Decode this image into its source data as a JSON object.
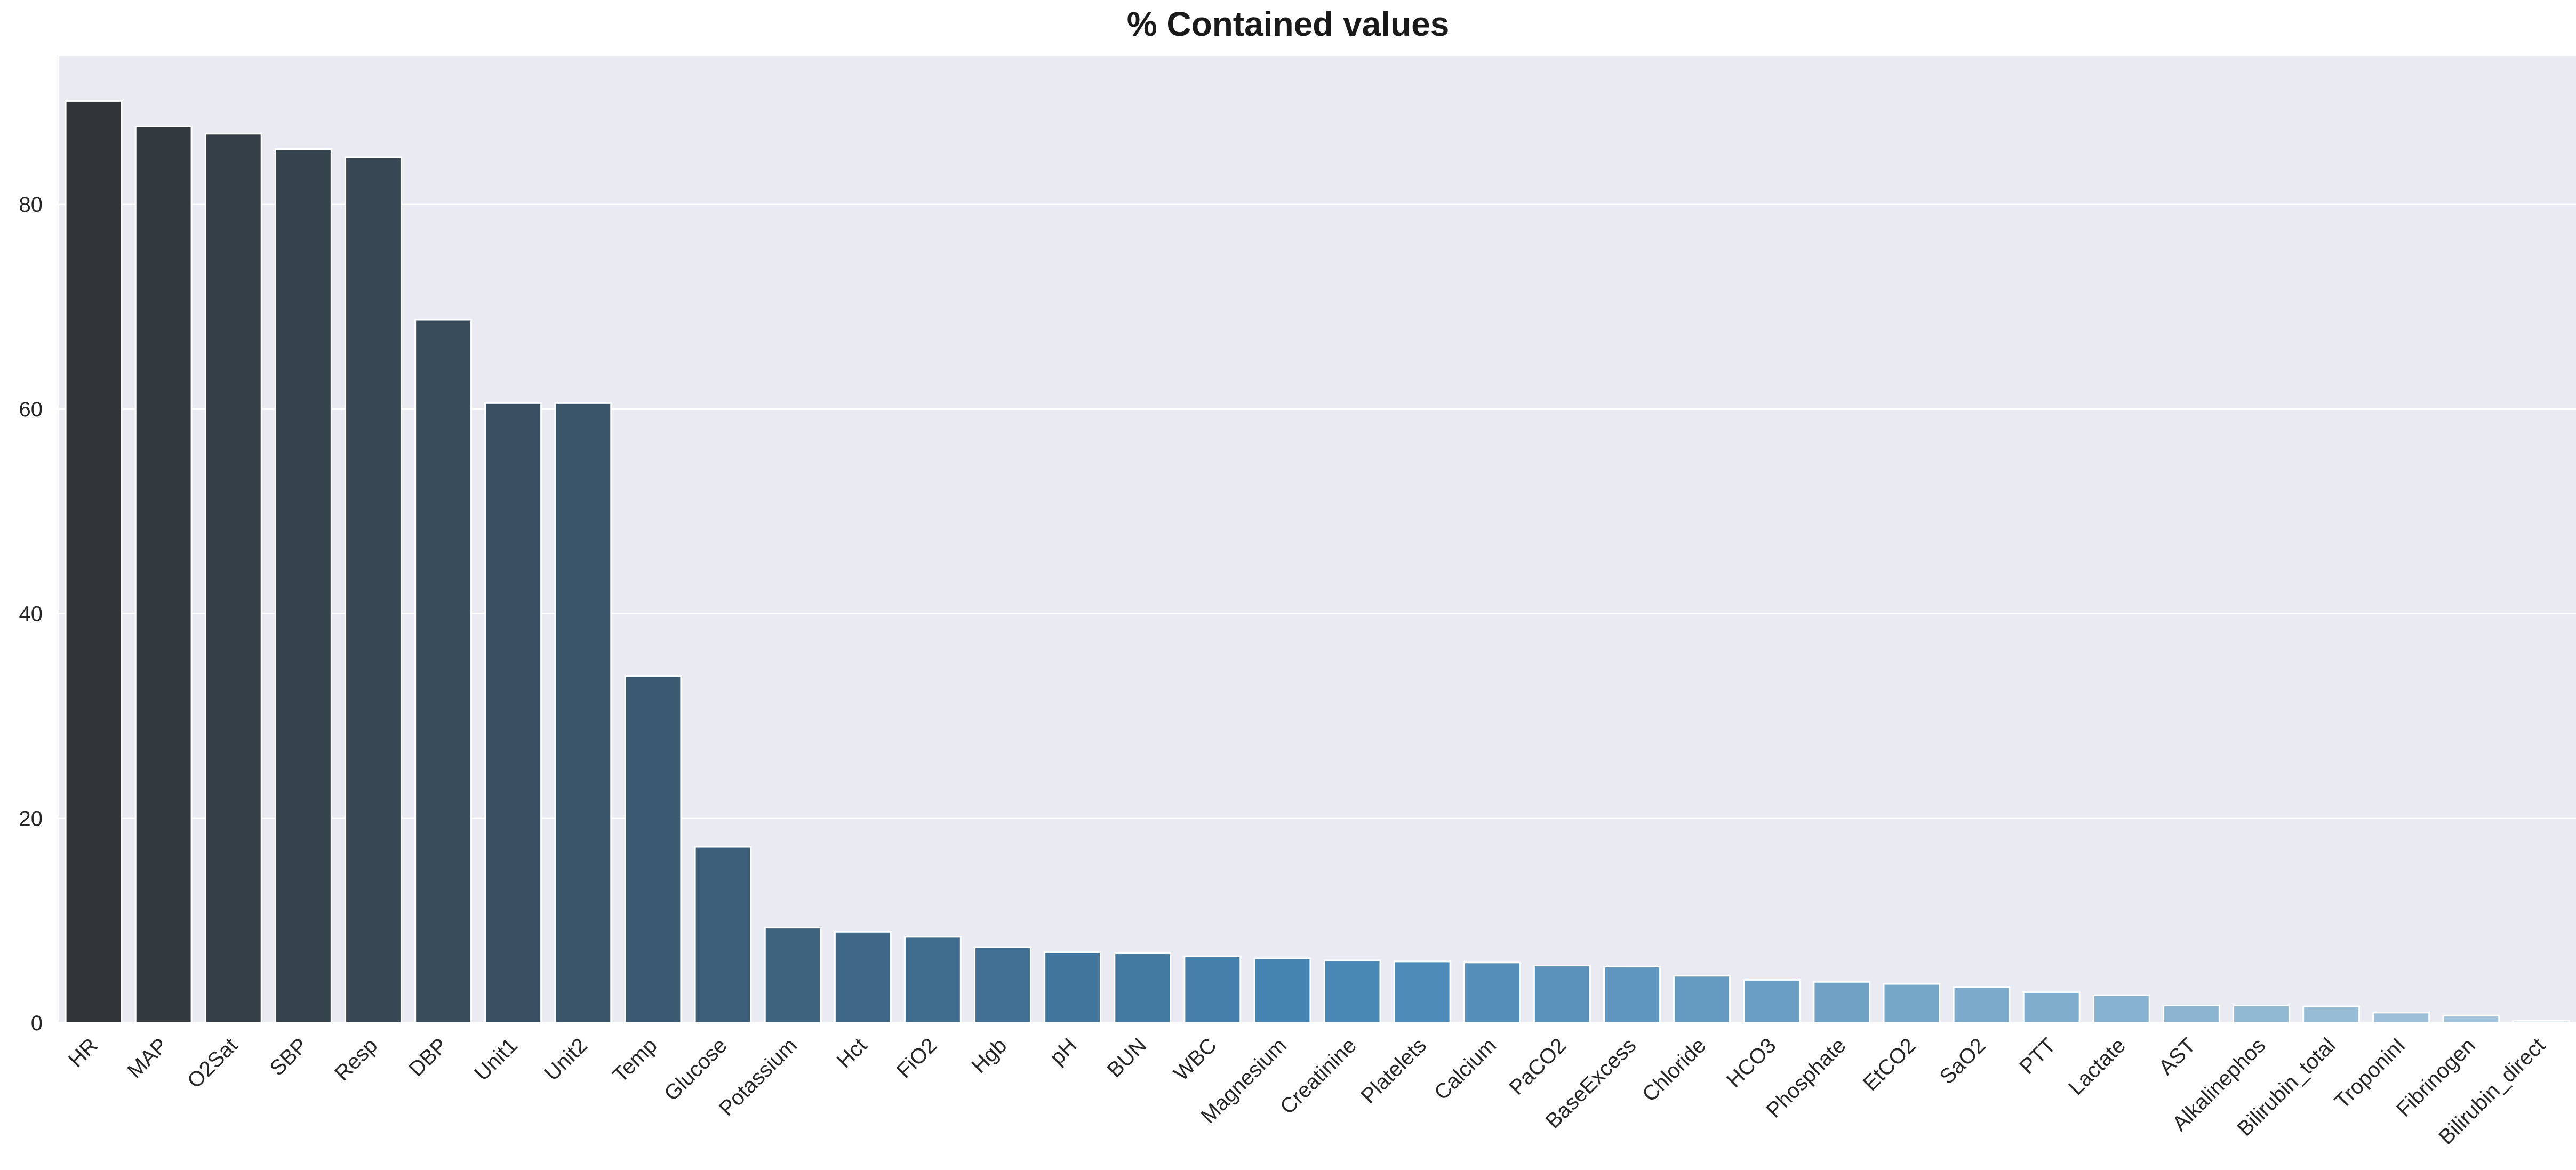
{
  "chart_data": {
    "type": "bar",
    "title": "% Contained values",
    "xlabel": "",
    "ylabel": "",
    "ylim": [
      0,
      94.5
    ],
    "yticks": [
      0,
      20,
      40,
      60,
      80
    ],
    "grid": true,
    "categories": [
      "HR",
      "MAP",
      "O2Sat",
      "SBP",
      "Resp",
      "DBP",
      "Unit1",
      "Unit2",
      "Temp",
      "Glucose",
      "Potassium",
      "Hct",
      "FiO2",
      "Hgb",
      "pH",
      "BUN",
      "WBC",
      "Magnesium",
      "Creatinine",
      "Platelets",
      "Calcium",
      "PaCO2",
      "BaseExcess",
      "Chloride",
      "HCO3",
      "Phosphate",
      "EtCO2",
      "SaO2",
      "PTT",
      "Lactate",
      "AST",
      "Alkalinephos",
      "Bilirubin_total",
      "TroponinI",
      "Fibrinogen",
      "Bilirubin_direct"
    ],
    "values": [
      90.1,
      87.6,
      86.9,
      85.4,
      84.6,
      68.7,
      60.6,
      60.6,
      33.9,
      17.2,
      9.3,
      8.9,
      8.4,
      7.4,
      6.9,
      6.8,
      6.5,
      6.3,
      6.1,
      6.0,
      5.9,
      5.6,
      5.5,
      4.6,
      4.2,
      4.0,
      3.8,
      3.5,
      3.0,
      2.7,
      1.7,
      1.7,
      1.6,
      1.0,
      0.7,
      0.2
    ]
  }
}
